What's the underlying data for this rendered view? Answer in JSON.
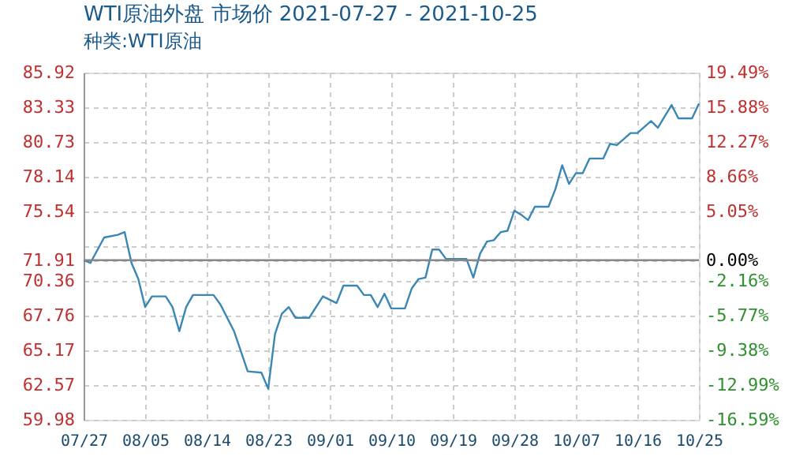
{
  "chart_data": {
    "type": "line",
    "title": "WTI原油外盘 市场价 2021-07-27 - 2021-10-25",
    "subtitle": "种类:WTI原油",
    "x": [
      "2021-07-27",
      "2021-07-28",
      "2021-07-30",
      "2021-08-01",
      "2021-08-02",
      "2021-08-03",
      "2021-08-04",
      "2021-08-05",
      "2021-08-06",
      "2021-08-08",
      "2021-08-09",
      "2021-08-10",
      "2021-08-11",
      "2021-08-12",
      "2021-08-15",
      "2021-08-16",
      "2021-08-17",
      "2021-08-18",
      "2021-08-20",
      "2021-08-22",
      "2021-08-23",
      "2021-08-24",
      "2021-08-25",
      "2021-08-26",
      "2021-08-27",
      "2021-08-29",
      "2021-08-31",
      "2021-09-02",
      "2021-09-03",
      "2021-09-05",
      "2021-09-06",
      "2021-09-07",
      "2021-09-08",
      "2021-09-09",
      "2021-09-10",
      "2021-09-12",
      "2021-09-13",
      "2021-09-14",
      "2021-09-15",
      "2021-09-16",
      "2021-09-17",
      "2021-09-18",
      "2021-09-21",
      "2021-09-22",
      "2021-09-23",
      "2021-09-24",
      "2021-09-25",
      "2021-09-26",
      "2021-09-27",
      "2021-09-28",
      "2021-09-29",
      "2021-09-30",
      "2021-10-01",
      "2021-10-03",
      "2021-10-04",
      "2021-10-05",
      "2021-10-06",
      "2021-10-07",
      "2021-10-08",
      "2021-10-09",
      "2021-10-11",
      "2021-10-12",
      "2021-10-13",
      "2021-10-15",
      "2021-10-16",
      "2021-10-18",
      "2021-10-19",
      "2021-10-21",
      "2021-10-22",
      "2021-10-24",
      "2021-10-25"
    ],
    "series": [
      {
        "color": "#3a87b4",
        "values": [
          71.9,
          71.7,
          73.6,
          73.8,
          74.0,
          71.7,
          70.5,
          68.4,
          69.2,
          69.2,
          68.4,
          66.6,
          68.4,
          69.3,
          69.3,
          68.6,
          67.6,
          66.6,
          63.6,
          63.5,
          62.3,
          66.4,
          67.9,
          68.4,
          67.6,
          67.6,
          69.2,
          68.7,
          70.0,
          70.0,
          69.3,
          69.3,
          68.4,
          69.4,
          68.3,
          68.3,
          69.8,
          70.5,
          70.6,
          72.7,
          72.7,
          72.0,
          72.0,
          70.6,
          72.4,
          73.3,
          73.4,
          74.0,
          74.1,
          75.6,
          75.3,
          74.9,
          75.9,
          75.9,
          77.2,
          79.0,
          77.6,
          78.4,
          78.4,
          79.5,
          79.5,
          80.6,
          80.5,
          81.4,
          81.4,
          82.3,
          81.8,
          83.5,
          82.5,
          82.5,
          83.6
        ]
      }
    ],
    "xlim": [
      "2021-07-27",
      "2021-10-25"
    ],
    "xticks": [
      {
        "value": "2021-07-27",
        "label": "07/27"
      },
      {
        "value": "2021-08-05",
        "label": "08/05"
      },
      {
        "value": "2021-08-14",
        "label": "08/14"
      },
      {
        "value": "2021-08-23",
        "label": "08/23"
      },
      {
        "value": "2021-09-01",
        "label": "09/01"
      },
      {
        "value": "2021-09-10",
        "label": "09/10"
      },
      {
        "value": "2021-09-19",
        "label": "09/19"
      },
      {
        "value": "2021-09-28",
        "label": "09/28"
      },
      {
        "value": "2021-10-07",
        "label": "10/07"
      },
      {
        "value": "2021-10-16",
        "label": "10/16"
      },
      {
        "value": "2021-10-25",
        "label": "10/25"
      }
    ],
    "ylim": [
      59.98,
      85.92
    ],
    "yticks": [
      59.98,
      62.57,
      65.17,
      67.76,
      70.36,
      71.91,
      {
        "value": 72.95,
        "label": null
      },
      75.54,
      78.14,
      80.73,
      83.33,
      85.92
    ],
    "y2lim": [
      -16.59,
      19.49
    ],
    "y2ticks": [
      {
        "value": -16.59,
        "label": "-16.59%"
      },
      {
        "value": -12.99,
        "label": "-12.99%"
      },
      {
        "value": -9.38,
        "label": "-9.38%"
      },
      {
        "value": -5.77,
        "label": "-5.77%"
      },
      {
        "value": -2.16,
        "label": "-2.16%"
      },
      {
        "value": 0,
        "label": "0.00%"
      },
      {
        "value": 5.05,
        "label": "5.05%"
      },
      {
        "value": 8.66,
        "label": "8.66%"
      },
      {
        "value": 12.27,
        "label": "12.27%"
      },
      {
        "value": 15.88,
        "label": "15.88%"
      },
      {
        "value": 19.49,
        "label": "19.49%"
      }
    ],
    "ref_lines": [
      {
        "axis": "y2",
        "value": 0,
        "color": "#888888"
      }
    ],
    "grid": true,
    "marker": "none",
    "line_style": "solid"
  }
}
